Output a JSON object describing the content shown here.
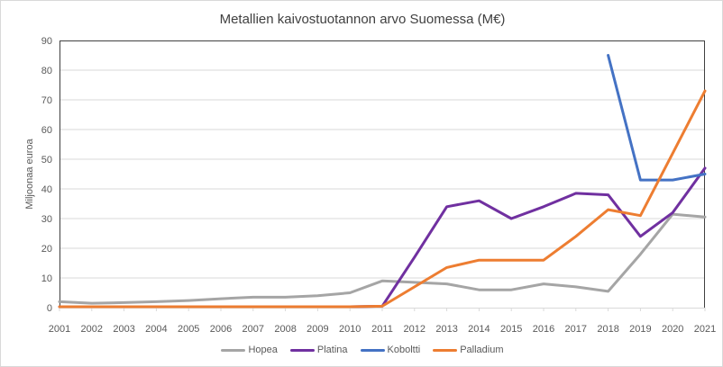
{
  "chart_data": {
    "type": "line",
    "title": "Metallien kaivostuotannon arvo Suomessa (M€)",
    "ylabel": "Miljoonaa euroa",
    "xlabel": "",
    "x": [
      "2001",
      "2002",
      "2003",
      "2004",
      "2005",
      "2006",
      "2007",
      "2008",
      "2009",
      "2010",
      "2011",
      "2012",
      "2013",
      "2014",
      "2015",
      "2016",
      "2017",
      "2018",
      "2019",
      "2020",
      "2021"
    ],
    "ylim": [
      0,
      90
    ],
    "ytick_step": 10,
    "grid": true,
    "legend_position": "bottom",
    "series": [
      {
        "name": "Hopea",
        "color": "#A5A5A5",
        "values": [
          2,
          1.5,
          1.7,
          2,
          2.4,
          3,
          3.5,
          3.5,
          4,
          5,
          9,
          8.5,
          8,
          6,
          6,
          8,
          7,
          5.5,
          18,
          31.5,
          30.5
        ]
      },
      {
        "name": "Platina",
        "color": "#7030A0",
        "values": [
          0.3,
          0.3,
          0.3,
          0.3,
          0.3,
          0.3,
          0.3,
          0.3,
          0.3,
          0.3,
          0.5,
          17,
          34,
          36,
          30,
          34,
          38.5,
          38,
          24,
          32,
          47
        ]
      },
      {
        "name": "Koboltti",
        "color": "#4472C4",
        "values": [
          null,
          null,
          null,
          null,
          null,
          null,
          null,
          null,
          null,
          null,
          null,
          null,
          null,
          null,
          null,
          null,
          null,
          85,
          43,
          43,
          45
        ]
      },
      {
        "name": "Palladium",
        "color": "#ED7D31",
        "values": [
          0.3,
          0.3,
          0.3,
          0.3,
          0.3,
          0.3,
          0.3,
          0.3,
          0.3,
          0.3,
          0.5,
          7,
          13.5,
          16,
          16,
          16,
          24,
          33,
          31,
          52,
          73
        ]
      }
    ],
    "style": {
      "gridline_color": "#D9D9D9",
      "plot_border_color": "#404040",
      "x_axis_color": "#D9D9D9",
      "text_color": "#595959",
      "line_width": 3
    }
  }
}
